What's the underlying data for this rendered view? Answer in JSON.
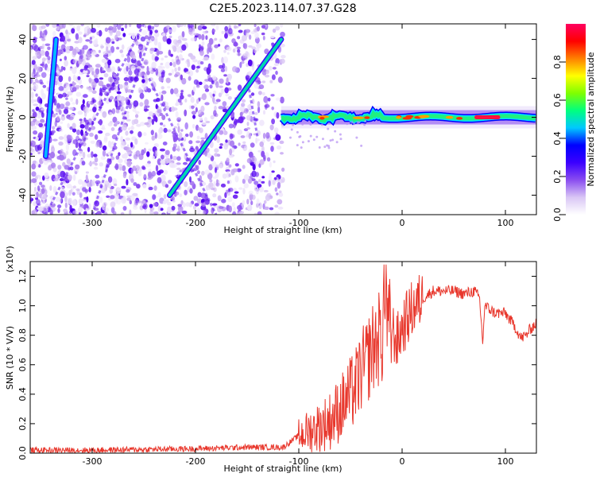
{
  "title": "C2E5.2023.114.07.37.G28",
  "chart_data": [
    {
      "type": "heatmap",
      "xlabel": "Height of straight line (km)",
      "ylabel": "Frequency (Hz)",
      "xlim": [
        -360,
        130
      ],
      "ylim": [
        -50,
        48
      ],
      "x_ticks": [
        "-300",
        "-200",
        "-100",
        "0",
        "100"
      ],
      "y_ticks": [
        "40",
        "20",
        "0",
        "-20",
        "-40"
      ],
      "colorbar": {
        "label": "Normalized spectral amplitude",
        "range": [
          0,
          1
        ],
        "ticks": [
          "0.0",
          "0.2",
          "0.4",
          "0.6",
          "0.8"
        ],
        "colormap": [
          "#ffffff",
          "#d9c6f5",
          "#8a4df0",
          "#3b00ff",
          "#0000ff",
          "#00c8ff",
          "#00ff7f",
          "#7fff00",
          "#ffff00",
          "#ff8000",
          "#ff0000",
          "#ff0060"
        ]
      },
      "features": [
        {
          "name": "",
          "kind": "noise",
          "x_range": [
            -360,
            -115
          ],
          "y_range": [
            -50,
            48
          ]
        },
        {
          "name": "",
          "kind": "line",
          "from": [
            -225,
            -40
          ],
          "to": [
            -117,
            40
          ],
          "color": "#00d8b0"
        },
        {
          "name": "",
          "kind": "line",
          "from": [
            -345,
            -20
          ],
          "to": [
            -335,
            40
          ],
          "color": "#00b8ff"
        },
        {
          "name": "",
          "kind": "band",
          "x_range": [
            -117,
            130
          ],
          "y_center": 0,
          "peak_x": [
            70,
            95
          ]
        }
      ]
    },
    {
      "type": "line",
      "xlabel": "Height of straight line (km)",
      "ylabel": "SNR (10 * V/V)",
      "y_multiplier": "(x10⁴)",
      "xlim": [
        -360,
        130
      ],
      "ylim": [
        0,
        1.3
      ],
      "x_ticks": [
        "-300",
        "-200",
        "-100",
        "0",
        "100"
      ],
      "y_ticks": [
        "0.0",
        "0.2",
        "0.4",
        "0.6",
        "0.8",
        "1.0",
        "1.2"
      ],
      "series": [
        {
          "name": "",
          "color": "#e8372c",
          "x": [
            -360,
            -300,
            -200,
            -150,
            -115,
            -100,
            -90,
            -80,
            -70,
            -60,
            -50,
            -45,
            -40,
            -35,
            -30,
            -25,
            -20,
            -15,
            -10,
            -5,
            0,
            10,
            20,
            30,
            40,
            50,
            60,
            70,
            75,
            78,
            80,
            90,
            100,
            110,
            115,
            120,
            125,
            130
          ],
          "y": [
            0.02,
            0.02,
            0.03,
            0.04,
            0.04,
            0.12,
            0.15,
            0.18,
            0.22,
            0.3,
            0.4,
            0.45,
            0.55,
            0.6,
            0.7,
            0.75,
            0.8,
            0.82,
            0.85,
            0.75,
            0.85,
            0.98,
            1.05,
            1.1,
            1.1,
            1.1,
            1.08,
            1.1,
            1.05,
            0.75,
            1.0,
            0.95,
            0.95,
            0.85,
            0.78,
            0.8,
            0.85,
            0.88
          ]
        }
      ]
    }
  ]
}
